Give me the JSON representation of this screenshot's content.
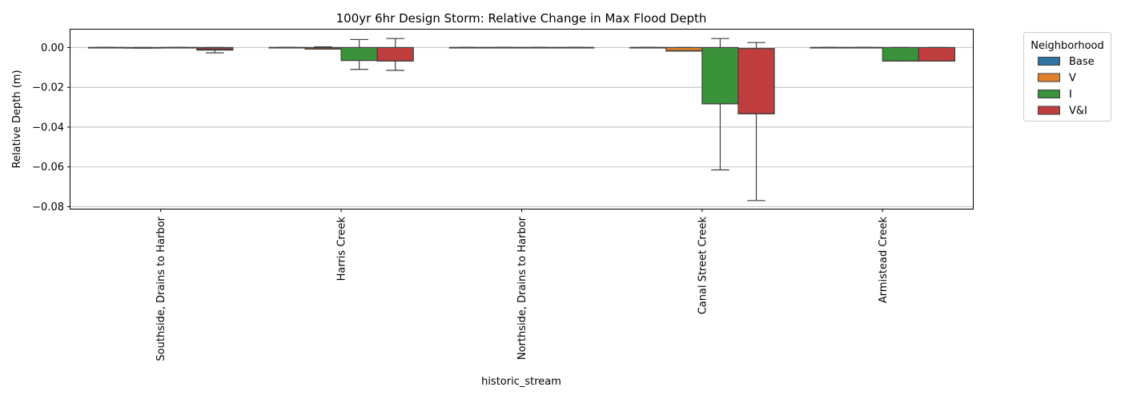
{
  "chart_data": {
    "type": "box",
    "title": "100yr 6hr Design Storm: Relative Change in Max Flood Depth",
    "xlabel": "historic_stream",
    "ylabel": "Relative Depth (m)",
    "ylim": [
      -0.081,
      0.009
    ],
    "yticks": [
      0.0,
      -0.02,
      -0.04,
      -0.06,
      -0.08
    ],
    "ytick_labels": [
      "0.00",
      "−0.02",
      "−0.04",
      "−0.06",
      "−0.08"
    ],
    "grid": "horizontal",
    "legend": {
      "title": "Neighborhood",
      "placement": "outside-top-right"
    },
    "categories": [
      "Southside, Drains to Harbor",
      "Harris Creek",
      "Northside, Drains to Harbor",
      "Canal Street Creek",
      "Armistead Creek"
    ],
    "series": [
      {
        "name": "Base",
        "color": "#3274a1",
        "boxes": [
          {
            "whislo": 0,
            "q1": 0,
            "med": 0,
            "q3": 0,
            "whishi": 0
          },
          {
            "whislo": 0,
            "q1": 0,
            "med": 0,
            "q3": 0,
            "whishi": 0
          },
          {
            "whislo": 0,
            "q1": 0,
            "med": 0,
            "q3": 0,
            "whishi": 0
          },
          {
            "whislo": 0,
            "q1": 0,
            "med": 0,
            "q3": 0,
            "whishi": 0
          },
          {
            "whislo": 0,
            "q1": 0,
            "med": 0,
            "q3": 0,
            "whishi": 0
          }
        ]
      },
      {
        "name": "V",
        "color": "#e1812c",
        "boxes": [
          {
            "whislo": -0.0003,
            "q1": -0.0003,
            "med": -0.0002,
            "q3": 0,
            "whishi": 0
          },
          {
            "whislo": -0.0008,
            "q1": -0.0008,
            "med": -0.0002,
            "q3": 0,
            "whishi": 0.0003
          },
          {
            "whislo": 0,
            "q1": 0,
            "med": 0,
            "q3": 0,
            "whishi": 0
          },
          {
            "whislo": -0.0018,
            "q1": -0.0018,
            "med": -0.0016,
            "q3": 0,
            "whishi": 0
          },
          {
            "whislo": 0,
            "q1": 0,
            "med": 0,
            "q3": 0,
            "whishi": 0
          }
        ]
      },
      {
        "name": "I",
        "color": "#3a923a",
        "boxes": [
          {
            "whislo": 0,
            "q1": 0,
            "med": 0,
            "q3": 0,
            "whishi": 0
          },
          {
            "whislo": -0.011,
            "q1": -0.0065,
            "med": -0.0065,
            "q3": 0,
            "whishi": 0.004
          },
          {
            "whislo": 0,
            "q1": 0,
            "med": 0,
            "q3": 0,
            "whishi": 0
          },
          {
            "whislo": -0.0615,
            "q1": -0.0283,
            "med": -0.0283,
            "q3": 0,
            "whishi": 0.0045
          },
          {
            "whislo": -0.0068,
            "q1": -0.0068,
            "med": -0.0068,
            "q3": 0,
            "whishi": 0
          }
        ]
      },
      {
        "name": "V&I",
        "color": "#c03d3e",
        "boxes": [
          {
            "whislo": -0.0027,
            "q1": -0.0013,
            "med": -0.0008,
            "q3": 0,
            "whishi": 0
          },
          {
            "whislo": -0.0115,
            "q1": -0.0068,
            "med": -0.0068,
            "q3": 0,
            "whishi": 0.0045
          },
          {
            "whislo": 0,
            "q1": 0,
            "med": 0,
            "q3": 0,
            "whishi": 0
          },
          {
            "whislo": -0.0769,
            "q1": -0.0333,
            "med": -0.0333,
            "q3": -0.0005,
            "whishi": 0.0025
          },
          {
            "whislo": -0.0068,
            "q1": -0.0068,
            "med": -0.0068,
            "q3": 0,
            "whishi": 0
          }
        ]
      }
    ]
  }
}
